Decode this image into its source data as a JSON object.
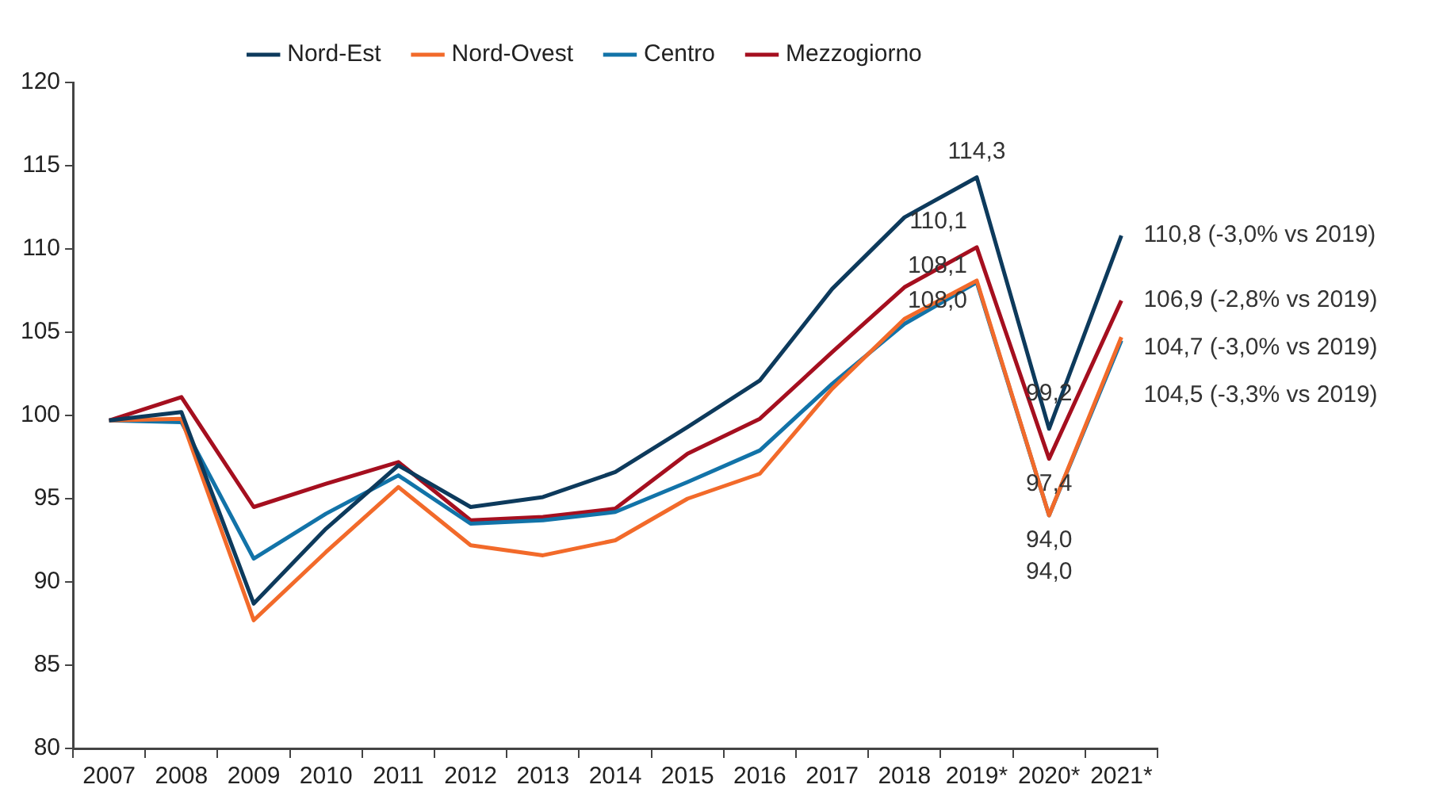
{
  "chart_data": {
    "type": "line",
    "categories": [
      "2007",
      "2008",
      "2009",
      "2010",
      "2011",
      "2012",
      "2013",
      "2014",
      "2015",
      "2016",
      "2017",
      "2018",
      "2019*",
      "2020*",
      "2021*"
    ],
    "series": [
      {
        "name": "Nord-Est",
        "color": "#0d3a5c",
        "values": [
          99.7,
          100.2,
          88.7,
          93.2,
          97.0,
          94.5,
          95.1,
          96.6,
          99.3,
          102.1,
          107.6,
          111.9,
          114.3,
          99.2,
          110.8
        ],
        "value_labels": [
          null,
          null,
          null,
          null,
          null,
          null,
          null,
          null,
          null,
          null,
          null,
          null,
          "114,3",
          "99,2",
          "110,8 (-3,0% vs 2019)"
        ]
      },
      {
        "name": "Nord-Ovest",
        "color": "#f26a2a",
        "values": [
          99.7,
          99.8,
          87.7,
          91.8,
          95.7,
          92.2,
          91.6,
          92.5,
          95.0,
          96.5,
          101.6,
          105.8,
          108.1,
          94.0,
          104.7
        ],
        "value_labels": [
          null,
          null,
          null,
          null,
          null,
          null,
          null,
          null,
          null,
          null,
          null,
          null,
          "108,1",
          "94,0",
          "104,7 (-3,0% vs 2019)"
        ]
      },
      {
        "name": "Centro",
        "color": "#1273a8",
        "values": [
          99.7,
          99.6,
          91.4,
          94.1,
          96.4,
          93.5,
          93.7,
          94.2,
          96.0,
          97.9,
          101.9,
          105.5,
          108.0,
          94.0,
          104.5
        ],
        "value_labels": [
          null,
          null,
          null,
          null,
          null,
          null,
          null,
          null,
          null,
          null,
          null,
          null,
          "108,0",
          "94,0",
          "104,5 (-3,3% vs 2019)"
        ]
      },
      {
        "name": "Mezzogiorno",
        "color": "#a50f1f",
        "values": [
          99.7,
          101.1,
          94.5,
          95.9,
          97.2,
          93.7,
          93.9,
          94.4,
          97.7,
          99.8,
          103.8,
          107.7,
          110.1,
          97.4,
          106.9
        ],
        "value_labels": [
          null,
          null,
          null,
          null,
          null,
          null,
          null,
          null,
          null,
          null,
          null,
          null,
          "110,1",
          "97,4",
          "106,9 (-2,8% vs 2019)"
        ]
      }
    ],
    "ylim": [
      80,
      120
    ],
    "yticks": [
      80,
      85,
      90,
      95,
      100,
      105,
      110,
      115,
      120
    ],
    "grid": false,
    "legend": "top",
    "marker": "none",
    "line_style": "solid"
  }
}
